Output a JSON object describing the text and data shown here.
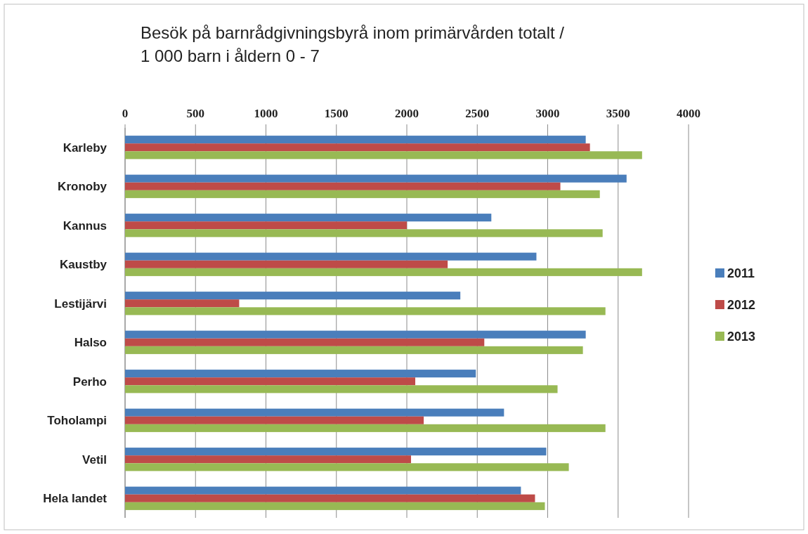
{
  "chart_data": {
    "type": "bar",
    "orientation": "horizontal",
    "title": "Besök på barnrådgivningsbyrå inom primärvården totalt /\n1 000 barn i åldern 0 - 7",
    "categories": [
      "Karleby",
      "Kronoby",
      "Kannus",
      "Kaustby",
      "Lestijärvi",
      "Halso",
      "Perho",
      "Toholampi",
      "Vetil",
      "Hela landet"
    ],
    "series": [
      {
        "name": "2011",
        "color": "#4a7ebb",
        "values": [
          3270,
          3560,
          2600,
          2920,
          2380,
          3270,
          2490,
          2690,
          2990,
          2810
        ]
      },
      {
        "name": "2012",
        "color": "#be4b48",
        "values": [
          3300,
          3090,
          2000,
          2290,
          810,
          2550,
          2060,
          2120,
          2030,
          2910
        ]
      },
      {
        "name": "2013",
        "color": "#98b954",
        "values": [
          3670,
          3370,
          3390,
          3670,
          3410,
          3250,
          3070,
          3410,
          3150,
          2980
        ]
      }
    ],
    "xlim": [
      0,
      4000
    ],
    "xticks": [
      0,
      500,
      1000,
      1500,
      2000,
      2500,
      3000,
      3500,
      4000
    ],
    "grid": "x",
    "legend": "right"
  }
}
